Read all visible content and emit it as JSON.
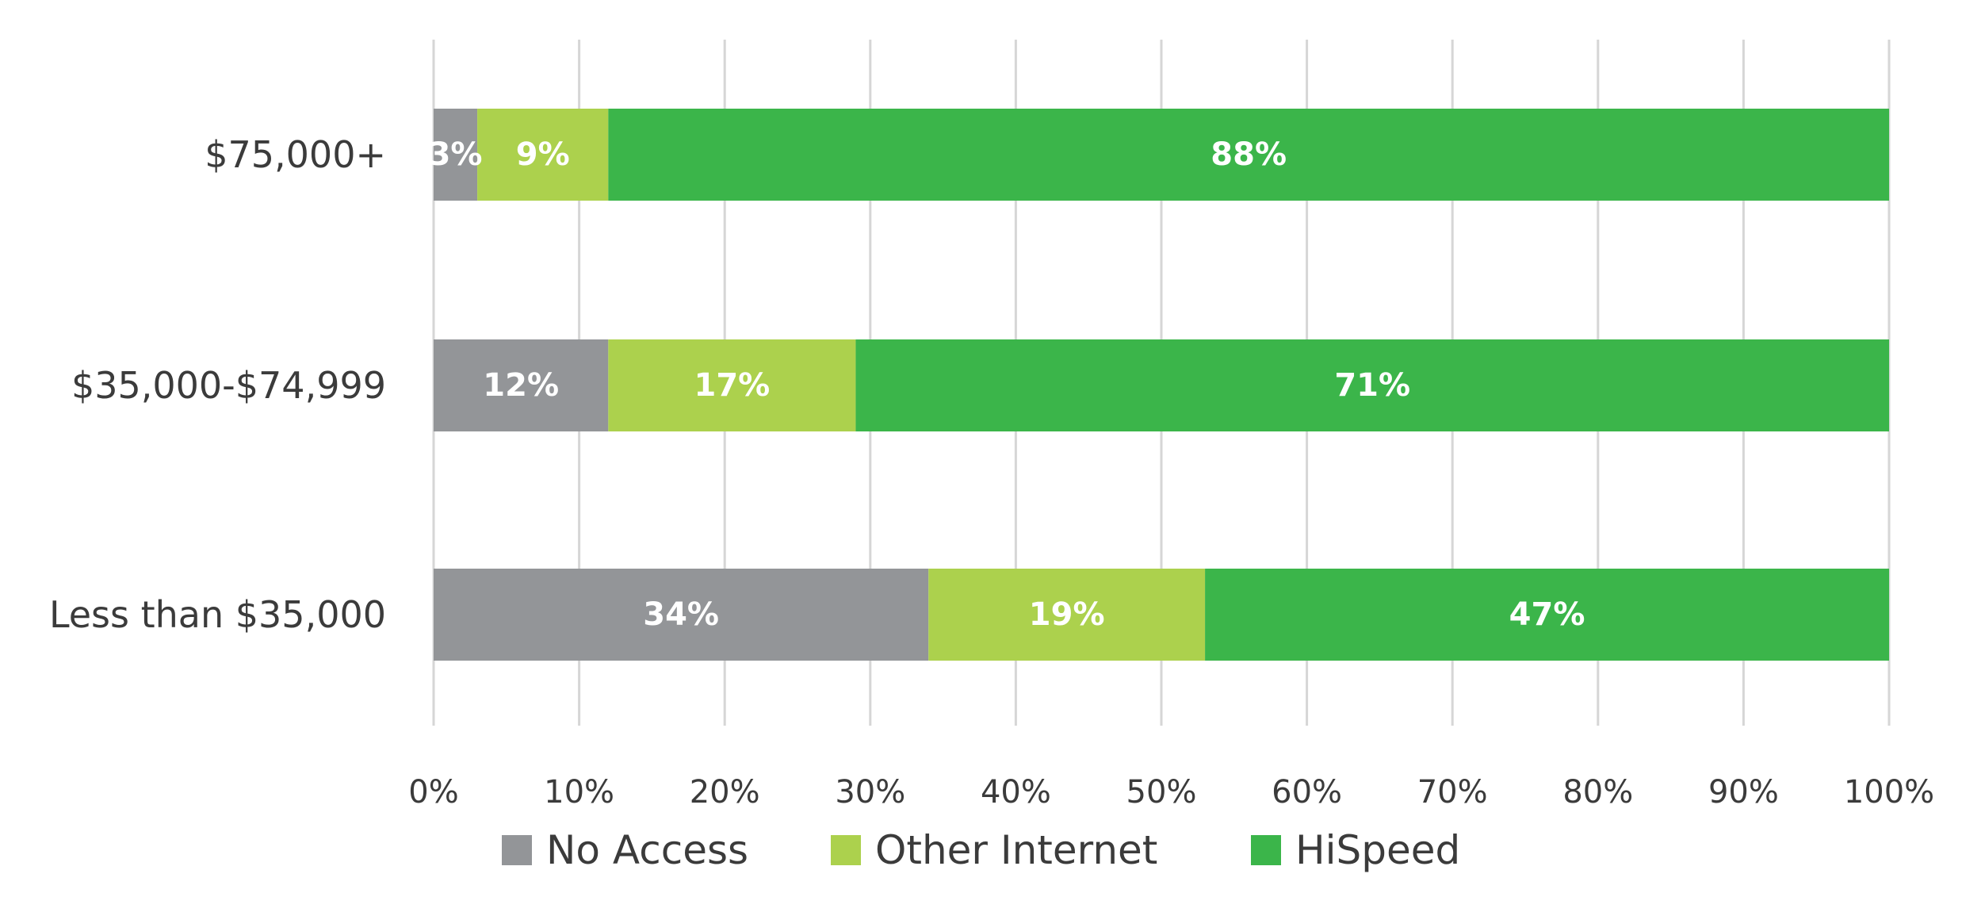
{
  "chart_data": {
    "type": "bar",
    "orientation": "horizontal",
    "stacked": true,
    "categories": [
      "$75,000+",
      "$35,000-$74,999",
      "Less than $35,000"
    ],
    "series": [
      {
        "name": "No Access",
        "color": "#939598",
        "values": [
          3,
          12,
          34
        ],
        "labels": [
          "3%",
          "12%",
          "34%"
        ]
      },
      {
        "name": "Other Internet",
        "color": "#acd14d",
        "values": [
          9,
          17,
          19
        ],
        "labels": [
          "9%",
          "17%",
          "19%"
        ]
      },
      {
        "name": "HiSpeed",
        "color": "#3bb54a",
        "values": [
          88,
          71,
          47
        ],
        "labels": [
          "88%",
          "71%",
          "47%"
        ]
      }
    ],
    "xlim": [
      0,
      100
    ],
    "x_ticks": [
      "0%",
      "10%",
      "20%",
      "30%",
      "40%",
      "50%",
      "60%",
      "70%",
      "80%",
      "90%",
      "100%"
    ],
    "grid": true,
    "legend_position": "bottom",
    "title": "",
    "xlabel": "",
    "ylabel": ""
  }
}
